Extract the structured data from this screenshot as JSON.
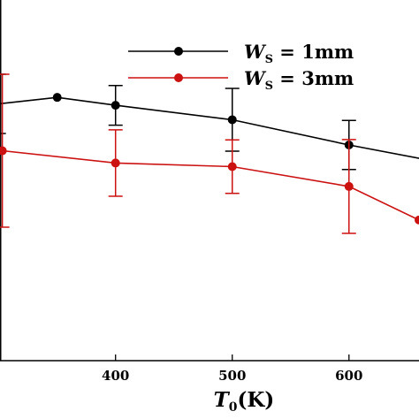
{
  "chart_data": {
    "type": "line",
    "title": "",
    "xlabel": {
      "main": "T",
      "sub": "0",
      "unit": "(K)"
    },
    "ylabel": "",
    "xlim": [
      301,
      660
    ],
    "ylim": [
      0,
      1
    ],
    "x_ticks": [
      {
        "value": 400,
        "label": "400"
      },
      {
        "value": 500,
        "label": "500"
      },
      {
        "value": 600,
        "label": "600"
      }
    ],
    "grid": false,
    "legend_position": "top-right",
    "series": [
      {
        "name": {
          "main": "W",
          "sub": "S",
          "rest": " = 1mm"
        },
        "color": "#000000",
        "points": [
          {
            "x": 300,
            "y": 0.712,
            "err_hi": 0.082,
            "err_lo": 0.082
          },
          {
            "x": 350,
            "y": 0.73,
            "err_hi": 0.0,
            "err_lo": 0.0
          },
          {
            "x": 400,
            "y": 0.708,
            "err_hi": 0.055,
            "err_lo": 0.055
          },
          {
            "x": 500,
            "y": 0.668,
            "err_hi": 0.087,
            "err_lo": 0.087
          },
          {
            "x": 600,
            "y": 0.598,
            "err_hi": 0.068,
            "err_lo": 0.068
          },
          {
            "x": 670,
            "y": 0.555,
            "err_hi": 0.0,
            "err_lo": 0.0
          }
        ]
      },
      {
        "name": {
          "main": "W",
          "sub": "S",
          "rest": " = 3mm"
        },
        "color": "#cc1111",
        "points": [
          {
            "x": 300,
            "y": 0.59,
            "err_hi": 0.0,
            "err_lo": 0.0
          },
          {
            "x": 303,
            "y": 0.582,
            "err_hi": 0.212,
            "err_lo": 0.212
          },
          {
            "x": 400,
            "y": 0.548,
            "err_hi": 0.092,
            "err_lo": 0.092
          },
          {
            "x": 500,
            "y": 0.538,
            "err_hi": 0.074,
            "err_lo": 0.074
          },
          {
            "x": 600,
            "y": 0.483,
            "err_hi": 0.13,
            "err_lo": 0.13
          },
          {
            "x": 660,
            "y": 0.39,
            "err_hi": 0.0,
            "err_lo": 0.0
          }
        ]
      }
    ],
    "legend": {
      "entries": [
        {
          "main": "W",
          "sub": "S",
          "rest": " = 1mm",
          "color": "#000000"
        },
        {
          "main": "W",
          "sub": "S",
          "rest": " = 3mm",
          "color": "#cc1111"
        }
      ]
    }
  }
}
